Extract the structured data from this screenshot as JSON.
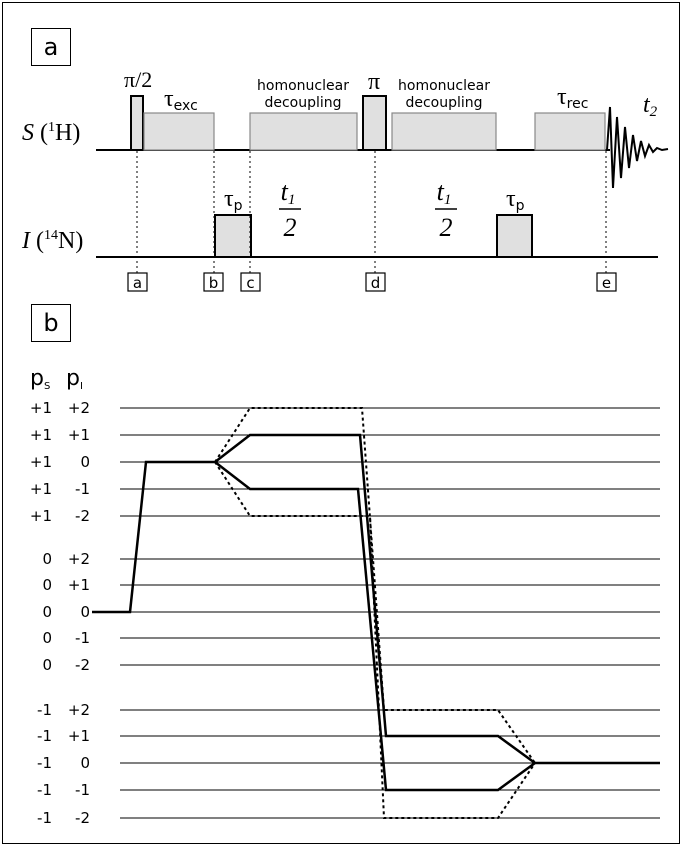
{
  "panel_a": {
    "label": "a",
    "channel_s": {
      "symbol": "S",
      "nucleus_mass": "1",
      "nucleus": "H"
    },
    "channel_i": {
      "symbol": "I",
      "nucleus_mass": "14",
      "nucleus": "N"
    },
    "pulses": {
      "pi_half": "π/2",
      "tau_exc": "τ",
      "tau_exc_sub": "exc",
      "homonuclear_1_line1": "homonuclear",
      "homonuclear_1_line2": "decoupling",
      "pi": "π",
      "homonuclear_2_line1": "homonuclear",
      "homonuclear_2_line2": "decoupling",
      "tau_rec": "τ",
      "tau_rec_sub": "rec",
      "t2": "t",
      "t2_sub": "2",
      "tau_p_1": "τ",
      "tau_p_1_sub": "p",
      "tau_p_2": "τ",
      "tau_p_2_sub": "p",
      "t1_half_1_num": "t",
      "t1_half_1_sub": "1",
      "t1_half_1_den": "2",
      "t1_half_2_num": "t",
      "t1_half_2_sub": "1",
      "t1_half_2_den": "2"
    },
    "time_points": [
      "a",
      "b",
      "c",
      "d",
      "e"
    ]
  },
  "panel_b": {
    "label": "b",
    "header_ps": "p",
    "header_ps_sub": "S",
    "header_pi": "p",
    "header_pi_sub": "I",
    "levels": [
      {
        "ps": "+1",
        "pi": "+2"
      },
      {
        "ps": "+1",
        "pi": "+1"
      },
      {
        "ps": "+1",
        "pi": "0"
      },
      {
        "ps": "+1",
        "pi": "-1"
      },
      {
        "ps": "+1",
        "pi": "-2"
      },
      {
        "ps": "0",
        "pi": "+2"
      },
      {
        "ps": "0",
        "pi": "+1"
      },
      {
        "ps": "0",
        "pi": "0"
      },
      {
        "ps": "0",
        "pi": "-1"
      },
      {
        "ps": "0",
        "pi": "-2"
      },
      {
        "ps": "-1",
        "pi": "+2"
      },
      {
        "ps": "-1",
        "pi": "+1"
      },
      {
        "ps": "-1",
        "pi": "0"
      },
      {
        "ps": "-1",
        "pi": "-1"
      },
      {
        "ps": "-1",
        "pi": "-2"
      }
    ]
  }
}
